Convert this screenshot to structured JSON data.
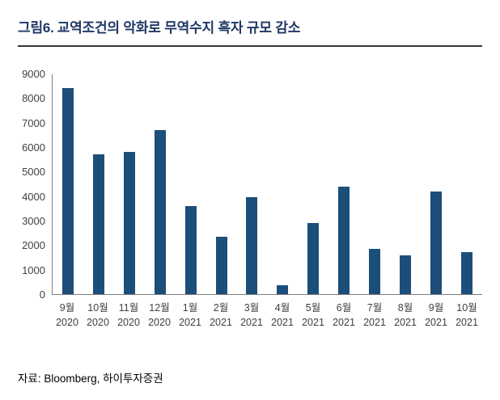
{
  "header": {
    "figure_label": "그림6.",
    "title": "교역조건의 악화로 무역수지 흑자 규모 감소",
    "title_color": "#1f3864"
  },
  "chart_data": {
    "type": "bar",
    "categories": [
      {
        "month": "9월",
        "year": "2020"
      },
      {
        "month": "10월",
        "year": "2020"
      },
      {
        "month": "11월",
        "year": "2020"
      },
      {
        "month": "12월",
        "year": "2020"
      },
      {
        "month": "1월",
        "year": "2021"
      },
      {
        "month": "2월",
        "year": "2021"
      },
      {
        "month": "3월",
        "year": "2021"
      },
      {
        "month": "4월",
        "year": "2021"
      },
      {
        "month": "5월",
        "year": "2021"
      },
      {
        "month": "6월",
        "year": "2021"
      },
      {
        "month": "7월",
        "year": "2021"
      },
      {
        "month": "8월",
        "year": "2021"
      },
      {
        "month": "9월",
        "year": "2021"
      },
      {
        "month": "10월",
        "year": "2021"
      }
    ],
    "values": [
      8400,
      5700,
      5800,
      6700,
      3600,
      2350,
      3950,
      380,
      2900,
      4400,
      1850,
      1600,
      4200,
      1700
    ],
    "title": "",
    "xlabel": "",
    "ylabel": "",
    "ylim": [
      0,
      9000
    ],
    "ytick_interval": 1000,
    "grid": false,
    "legend": false,
    "bar_color": "#1b4e79"
  },
  "footer": {
    "source": "자료: Bloomberg, 하이투자증권"
  }
}
